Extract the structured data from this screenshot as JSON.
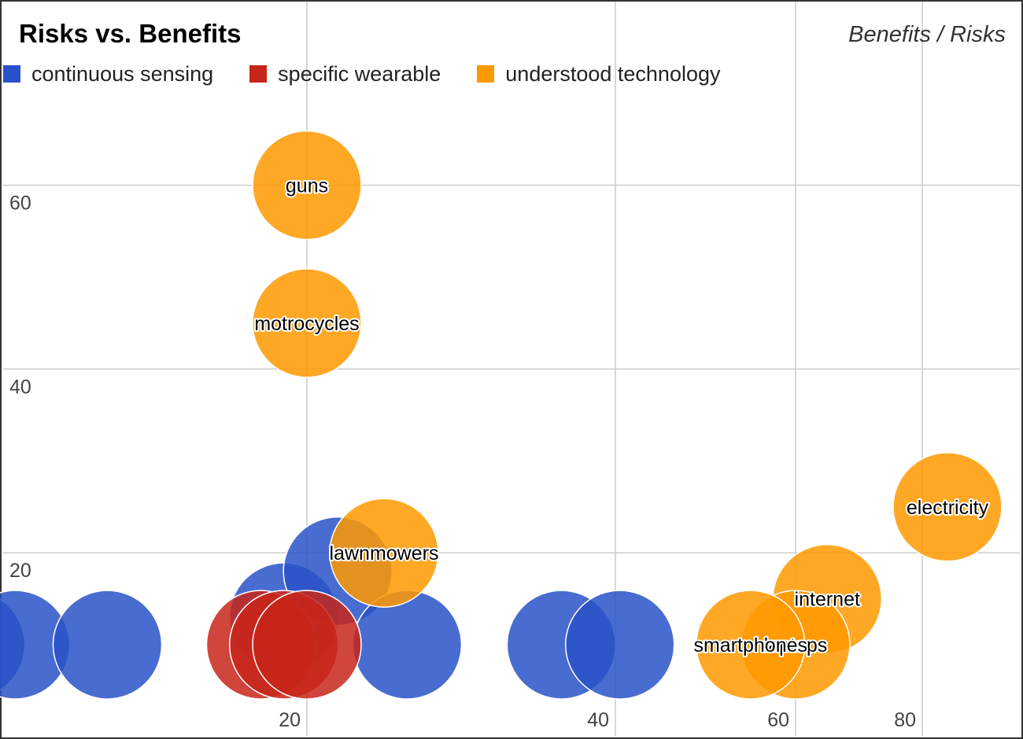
{
  "chart_data": {
    "type": "scatter",
    "title": "Risks vs. Benefits",
    "subtitle": "Benefits / Risks",
    "xlabel": "",
    "ylabel": "",
    "grid": true,
    "legend_position": "top",
    "colors": {
      "continuous sensing": "#2952c8",
      "specific wearable": "#c8261a",
      "understood technology": "#ff9900"
    },
    "x_ticks": [
      20,
      40,
      60,
      80
    ],
    "y_ticks": [
      20,
      40,
      60
    ],
    "series": [
      {
        "name": "continuous sensing",
        "points": [
          {
            "x": -5,
            "y": 10,
            "label": ""
          },
          {
            "x": 1,
            "y": 10,
            "label": ""
          },
          {
            "x": 7,
            "y": 10,
            "label": ""
          },
          {
            "x": 18.5,
            "y": 13,
            "label": ""
          },
          {
            "x": 22,
            "y": 18,
            "label": ""
          },
          {
            "x": 26.5,
            "y": 10,
            "label": ""
          },
          {
            "x": 36.5,
            "y": 10,
            "label": ""
          },
          {
            "x": 40.5,
            "y": 10,
            "label": ""
          }
        ]
      },
      {
        "name": "specific wearable",
        "points": [
          {
            "x": 17,
            "y": 10,
            "label": ""
          },
          {
            "x": 18.5,
            "y": 10,
            "label": ""
          },
          {
            "x": 20,
            "y": 10,
            "label": ""
          }
        ]
      },
      {
        "name": "understood technology",
        "points": [
          {
            "x": 20,
            "y": 60,
            "label": "guns"
          },
          {
            "x": 20,
            "y": 45,
            "label": "motrocycles"
          },
          {
            "x": 25,
            "y": 20,
            "label": "lawnmowers"
          },
          {
            "x": 84,
            "y": 25,
            "label": "electricity"
          },
          {
            "x": 65,
            "y": 15,
            "label": "internet"
          },
          {
            "x": 60,
            "y": 10,
            "label": "laptops"
          },
          {
            "x": 55,
            "y": 10,
            "label": "smartphones"
          }
        ]
      }
    ]
  }
}
